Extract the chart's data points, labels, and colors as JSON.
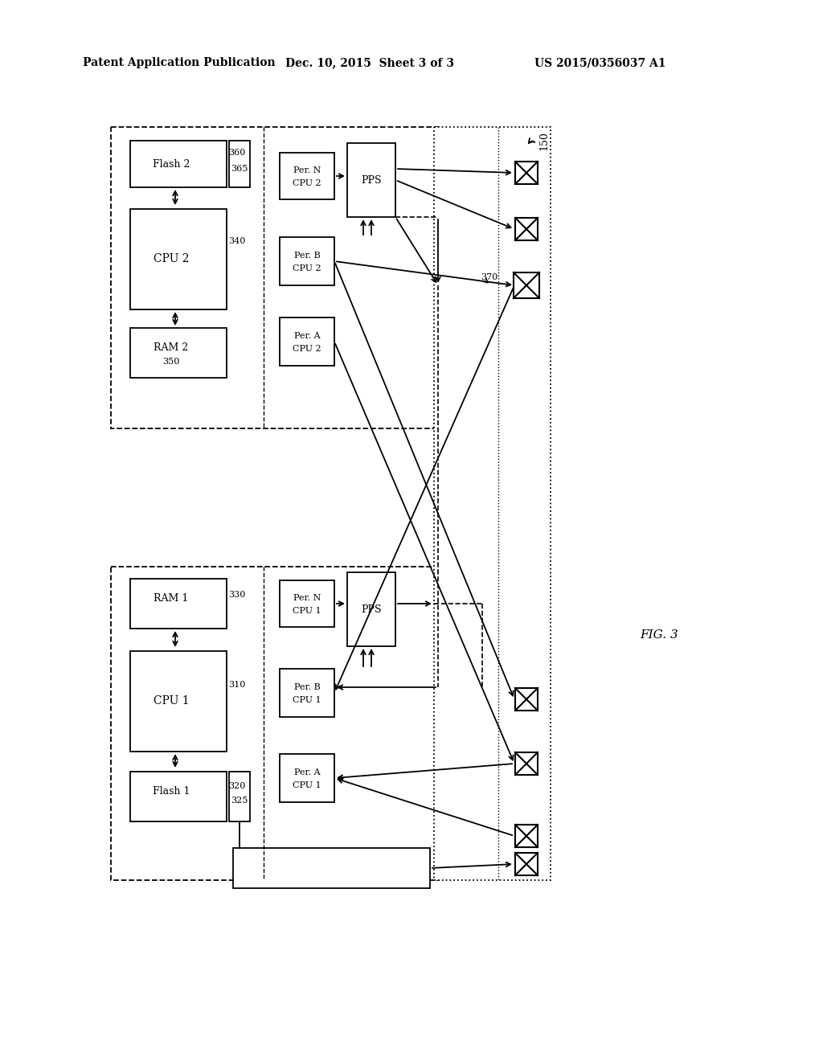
{
  "bg": "#ffffff",
  "header_left": "Patent Application Publication",
  "header_mid": "Dec. 10, 2015  Sheet 3 of 3",
  "header_right": "US 2015/0356037 A1",
  "fig_caption": "FIG. 3"
}
